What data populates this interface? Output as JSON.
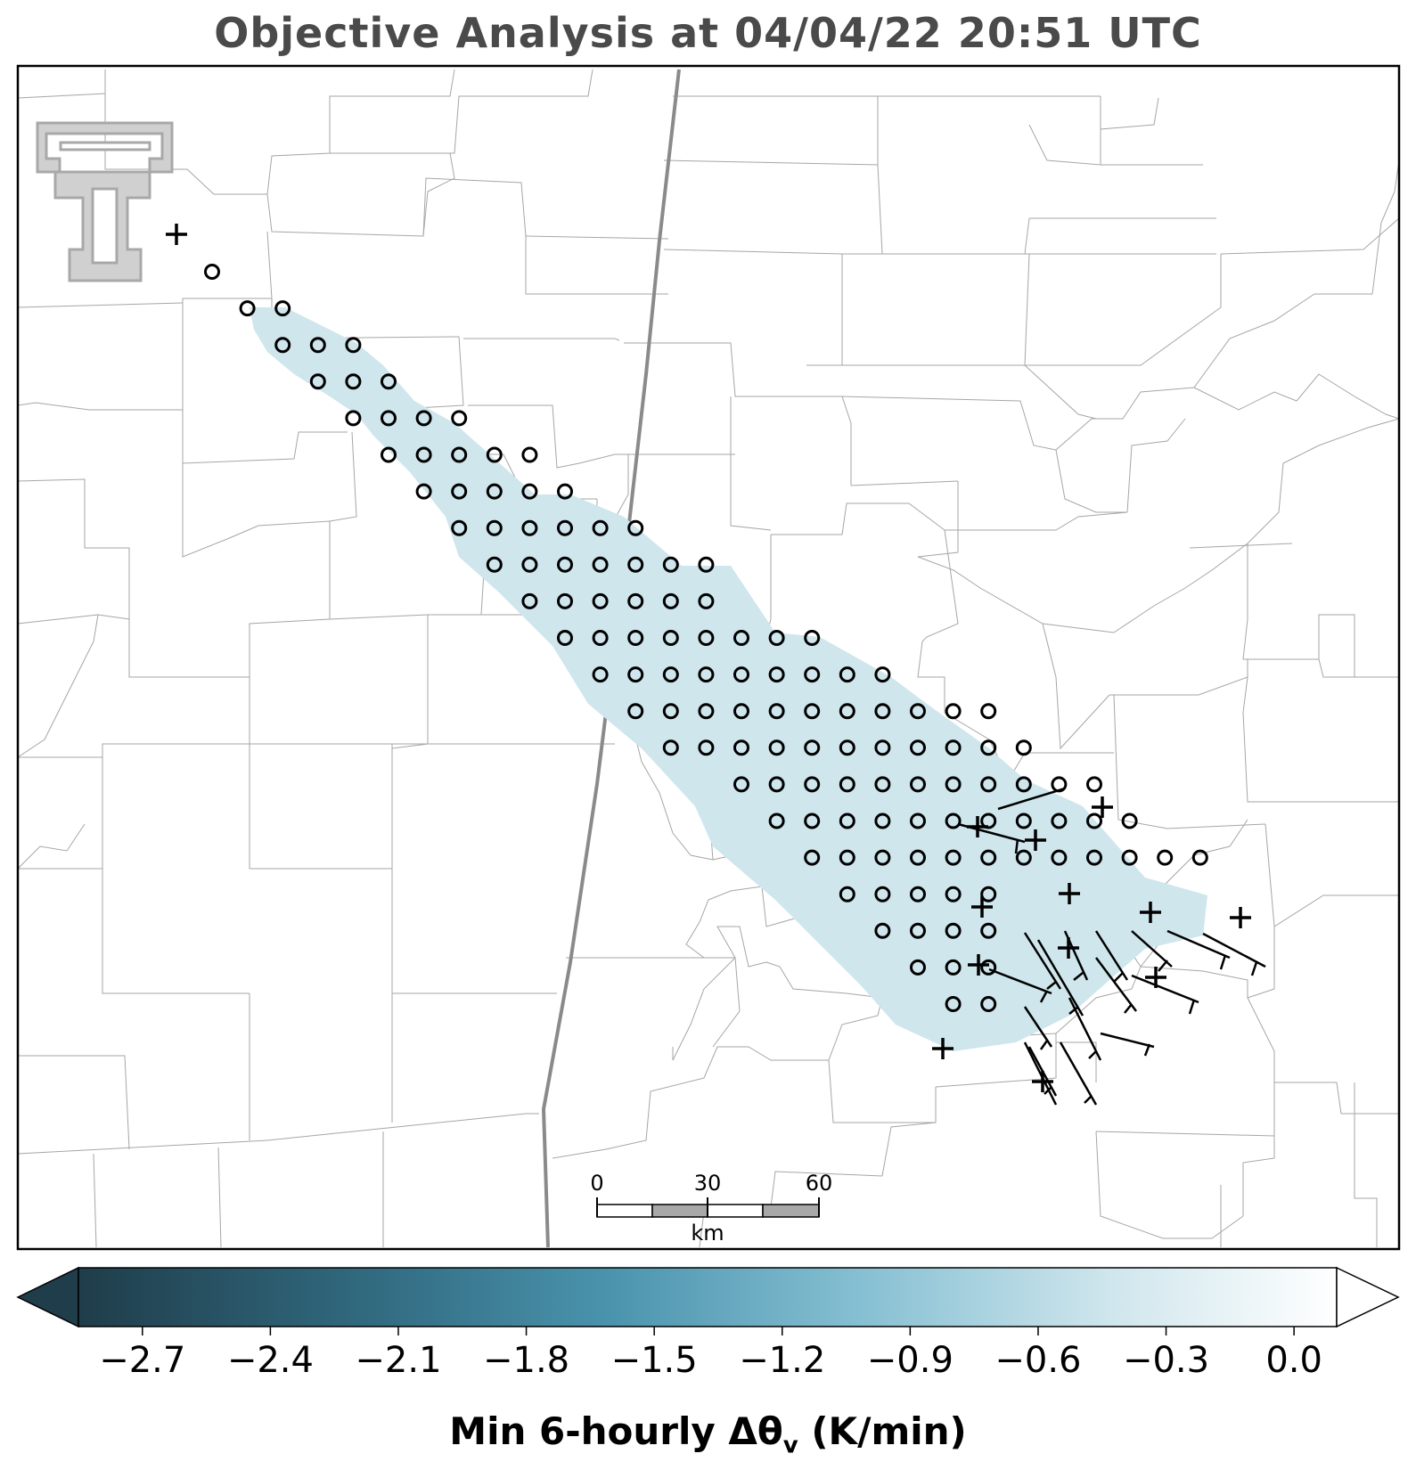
{
  "title": "Objective Analysis at 04/04/22 20:51 UTC",
  "scale_bar": {
    "labels": [
      "0",
      "30",
      "60"
    ],
    "unit": "km"
  },
  "colorbar": {
    "label_main": "Min 6-hourly Δθ",
    "label_sub": "v",
    "label_tail": " (K/min)",
    "ticks": [
      "−2.7",
      "−2.4",
      "−2.1",
      "−1.8",
      "−1.5",
      "−1.2",
      "−0.9",
      "−0.6",
      "−0.3",
      "0.0"
    ],
    "tick_values": [
      -2.7,
      -2.4,
      -2.1,
      -1.8,
      -1.5,
      -1.2,
      -0.9,
      -0.6,
      -0.3,
      0.0
    ],
    "range": [
      -2.85,
      0.1
    ],
    "color_dark": "#1f3d4a",
    "color_mid": "#4a93ad",
    "color_light": "#ffffff",
    "field_color": "#cfe6ed",
    "extend": "both"
  },
  "logo": {
    "name": "Texas Tech double T",
    "color": "#a8a8a8"
  },
  "stations": {
    "circle_rows": [
      [
        [
          6,
          0
        ]
      ],
      [
        [
          7,
          0
        ],
        [
          8,
          0
        ]
      ],
      [
        [
          8,
          0
        ],
        [
          9,
          0
        ],
        [
          10,
          0
        ]
      ],
      [
        [
          9,
          0
        ],
        [
          10,
          0
        ],
        [
          11,
          0
        ]
      ],
      [
        [
          10,
          0
        ],
        [
          11,
          0
        ],
        [
          12,
          0
        ],
        [
          13,
          0
        ]
      ],
      [
        [
          11,
          0
        ],
        [
          12,
          0
        ],
        [
          13,
          0
        ],
        [
          14,
          0
        ],
        [
          15,
          0
        ]
      ],
      [
        [
          12,
          0
        ],
        [
          13,
          0
        ],
        [
          14,
          0
        ],
        [
          15,
          0
        ],
        [
          16,
          0
        ]
      ],
      [
        [
          13,
          0
        ],
        [
          14,
          0
        ],
        [
          15,
          0
        ],
        [
          16,
          0
        ],
        [
          17,
          0
        ],
        [
          18,
          0
        ]
      ],
      [
        [
          14,
          0
        ],
        [
          15,
          0
        ],
        [
          16,
          0
        ],
        [
          17,
          0
        ],
        [
          18,
          0
        ],
        [
          19,
          0
        ],
        [
          20,
          0
        ]
      ],
      [
        [
          15,
          0
        ],
        [
          16,
          0
        ],
        [
          17,
          0
        ],
        [
          18,
          0
        ],
        [
          19,
          0
        ],
        [
          20,
          0
        ]
      ],
      [
        [
          16,
          0
        ],
        [
          17,
          0
        ],
        [
          18,
          0
        ],
        [
          19,
          0
        ],
        [
          20,
          0
        ],
        [
          21,
          0
        ],
        [
          22,
          0
        ],
        [
          23,
          0
        ]
      ],
      [
        [
          17,
          0
        ],
        [
          18,
          0
        ],
        [
          19,
          0
        ],
        [
          20,
          0
        ],
        [
          21,
          0
        ],
        [
          22,
          0
        ],
        [
          23,
          0
        ],
        [
          24,
          0
        ],
        [
          25,
          0
        ]
      ],
      [
        [
          18,
          0
        ],
        [
          19,
          0
        ],
        [
          20,
          0
        ],
        [
          21,
          0
        ],
        [
          22,
          0
        ],
        [
          23,
          0
        ],
        [
          24,
          0
        ],
        [
          25,
          0
        ],
        [
          26,
          0
        ],
        [
          27,
          0
        ],
        [
          28,
          0
        ]
      ],
      [
        [
          19,
          0
        ],
        [
          20,
          0
        ],
        [
          21,
          0
        ],
        [
          22,
          0
        ],
        [
          23,
          0
        ],
        [
          24,
          0
        ],
        [
          25,
          0
        ],
        [
          26,
          0
        ],
        [
          27,
          0
        ],
        [
          28,
          0
        ],
        [
          29,
          0
        ]
      ],
      [
        [
          21,
          0
        ],
        [
          22,
          0
        ],
        [
          23,
          0
        ],
        [
          24,
          0
        ],
        [
          25,
          0
        ],
        [
          26,
          0
        ],
        [
          27,
          0
        ],
        [
          28,
          0
        ],
        [
          29,
          0
        ],
        [
          30,
          0
        ],
        [
          31,
          0
        ]
      ],
      [
        [
          22,
          0
        ],
        [
          23,
          0
        ],
        [
          24,
          0
        ],
        [
          25,
          0
        ],
        [
          26,
          0
        ],
        [
          27,
          0
        ],
        [
          28,
          0
        ],
        [
          29,
          0
        ],
        [
          30,
          0
        ],
        [
          31,
          0
        ],
        [
          32,
          0
        ]
      ],
      [
        [
          23,
          0
        ],
        [
          24,
          0
        ],
        [
          25,
          0
        ],
        [
          26,
          0
        ],
        [
          27,
          0
        ],
        [
          28,
          0
        ],
        [
          29,
          0
        ],
        [
          30,
          0
        ],
        [
          31,
          0
        ],
        [
          32,
          0
        ],
        [
          33,
          0
        ],
        [
          34,
          0
        ]
      ],
      [
        [
          24,
          0
        ],
        [
          25,
          0
        ],
        [
          26,
          0
        ],
        [
          27,
          0
        ],
        [
          28,
          0
        ]
      ],
      [
        [
          25,
          0
        ],
        [
          26,
          0
        ],
        [
          27,
          0
        ],
        [
          28,
          0
        ]
      ],
      [
        [
          26,
          0
        ],
        [
          27,
          0
        ],
        [
          28,
          0
        ]
      ],
      [
        [
          27,
          0
        ],
        [
          28,
          0
        ]
      ]
    ]
  }
}
